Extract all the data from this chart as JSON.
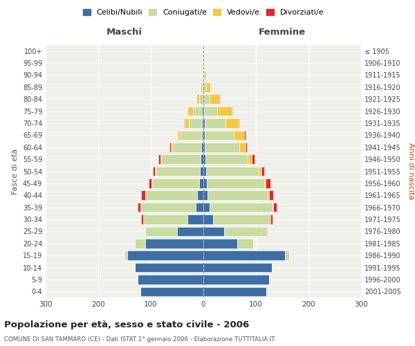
{
  "age_groups": [
    "0-4",
    "5-9",
    "10-14",
    "15-19",
    "20-24",
    "25-29",
    "30-34",
    "35-39",
    "40-44",
    "45-49",
    "50-54",
    "55-59",
    "60-64",
    "65-69",
    "70-74",
    "75-79",
    "80-84",
    "85-89",
    "90-94",
    "95-99",
    "100+"
  ],
  "birth_years": [
    "2001-2005",
    "1996-2000",
    "1991-1995",
    "1986-1990",
    "1981-1985",
    "1976-1980",
    "1971-1975",
    "1966-1970",
    "1961-1965",
    "1956-1960",
    "1951-1955",
    "1946-1950",
    "1941-1945",
    "1936-1940",
    "1931-1935",
    "1926-1930",
    "1921-1925",
    "1916-1920",
    "1911-1915",
    "1906-1910",
    "≤ 1905"
  ],
  "male": {
    "celibi": [
      120,
      125,
      130,
      145,
      110,
      50,
      30,
      15,
      12,
      8,
      6,
      5,
      4,
      3,
      3,
      2,
      0,
      0,
      0,
      0,
      0
    ],
    "coniugati": [
      0,
      0,
      0,
      5,
      20,
      60,
      85,
      105,
      98,
      90,
      85,
      75,
      55,
      40,
      25,
      18,
      8,
      3,
      1,
      0,
      0
    ],
    "vedovi": [
      0,
      0,
      0,
      0,
      0,
      0,
      0,
      0,
      0,
      1,
      1,
      2,
      3,
      5,
      8,
      10,
      5,
      2,
      0,
      0,
      0
    ],
    "divorziati": [
      0,
      0,
      0,
      0,
      0,
      1,
      3,
      5,
      8,
      5,
      4,
      3,
      2,
      1,
      1,
      0,
      0,
      0,
      0,
      0,
      0
    ]
  },
  "female": {
    "nubili": [
      120,
      125,
      130,
      155,
      65,
      40,
      18,
      12,
      8,
      6,
      5,
      4,
      3,
      3,
      2,
      1,
      0,
      0,
      0,
      0,
      0
    ],
    "coniugate": [
      0,
      0,
      2,
      8,
      30,
      80,
      110,
      120,
      115,
      110,
      100,
      80,
      65,
      55,
      40,
      25,
      12,
      5,
      2,
      1,
      0
    ],
    "vedove": [
      0,
      0,
      0,
      0,
      0,
      0,
      0,
      1,
      2,
      3,
      5,
      8,
      12,
      20,
      25,
      28,
      18,
      8,
      3,
      1,
      0
    ],
    "divorziate": [
      0,
      0,
      0,
      0,
      0,
      1,
      3,
      6,
      8,
      8,
      6,
      5,
      3,
      2,
      1,
      1,
      1,
      0,
      0,
      0,
      0
    ]
  },
  "colors": {
    "celibi": "#3d6fa5",
    "coniugati": "#c8dba0",
    "vedovi": "#f5c842",
    "divorziati": "#d92b2b"
  },
  "title": "Popolazione per età, sesso e stato civile - 2006",
  "subtitle": "COMUNE DI SAN TAMMARO (CE) - Dati ISTAT 1° gennaio 2006 - Elaborazione TUTTITALIA.IT",
  "xlabel_left": "Maschi",
  "xlabel_right": "Femmine",
  "ylabel_left": "Fasce di età",
  "ylabel_right": "Anni di nascita",
  "xlim": 300,
  "legend_labels": [
    "Celibi/Nubili",
    "Coniugati/e",
    "Vedovi/e",
    "Divorziati/e"
  ],
  "background_color": "#f0f0eb"
}
